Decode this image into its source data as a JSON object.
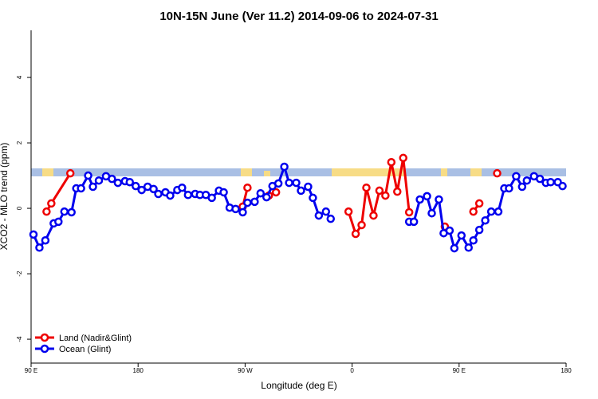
{
  "chart_data": {
    "type": "line",
    "title": "10N-15N June (Ver 11.2)   2014-09-06 to 2024-07-31",
    "x_label": "Longitude (deg E)",
    "y_label": "XCO2 - MLO trend (ppm)",
    "xlim": [
      90,
      540
    ],
    "xticks": [
      {
        "value": 90,
        "label": "90 E"
      },
      180,
      {
        "value": 270,
        "label": "90 W"
      },
      {
        "value": 360,
        "label": "0"
      },
      {
        "value": 450,
        "label": "90 E"
      },
      {
        "value": 540,
        "label": "180"
      }
    ],
    "ylim": [
      -4.73,
      5.44
    ],
    "yticks": [
      -4,
      -2,
      0,
      2,
      4
    ],
    "legend": "bottom-left",
    "series": [
      {
        "name": "Land (Nadir&Glint)",
        "color": "#ee0000",
        "x": [
          103,
          107,
          123,
          200,
          268,
          272,
          280,
          290,
          296,
          330,
          357,
          363,
          368,
          372,
          378,
          383,
          388,
          393,
          398,
          403,
          408,
          420,
          438,
          450,
          462,
          467,
          475,
          482
        ],
        "values": [
          -0.1,
          0.15,
          1.07,
          null,
          0.05,
          0.63,
          null,
          0.39,
          0.49,
          null,
          -0.1,
          -0.78,
          -0.51,
          0.63,
          -0.22,
          0.54,
          0.39,
          1.41,
          0.51,
          1.54,
          -0.12,
          null,
          -0.56,
          null,
          -0.1,
          0.15,
          null,
          1.07
        ]
      },
      {
        "name": "Ocean (Glint)",
        "color": "#0000ee",
        "x": [
          92,
          97,
          102,
          109,
          113,
          118,
          124,
          128,
          132,
          138,
          142,
          147,
          153,
          158,
          163,
          169,
          173,
          178,
          183,
          188,
          193,
          197,
          203,
          207,
          213,
          217,
          222,
          228,
          232,
          237,
          242,
          248,
          252,
          257,
          262,
          268,
          272,
          278,
          283,
          288,
          293,
          298,
          303,
          307,
          313,
          317,
          323,
          327,
          332,
          338,
          342,
          375,
          408,
          412,
          417,
          423,
          427,
          433,
          437,
          442,
          446,
          452,
          458,
          462,
          467,
          472,
          477,
          483,
          488,
          492,
          498,
          503,
          507,
          513,
          518,
          523,
          527,
          533,
          537
        ],
        "values": [
          -0.8,
          -1.2,
          -0.98,
          -0.46,
          -0.41,
          -0.1,
          -0.12,
          0.61,
          0.61,
          1.0,
          0.66,
          0.85,
          0.98,
          0.9,
          0.78,
          0.83,
          0.8,
          0.68,
          0.56,
          0.66,
          0.59,
          0.44,
          0.49,
          0.39,
          0.56,
          0.63,
          0.41,
          0.44,
          0.41,
          0.41,
          0.32,
          0.54,
          0.49,
          0.02,
          -0.02,
          -0.12,
          0.17,
          0.2,
          0.46,
          0.34,
          0.68,
          0.76,
          1.27,
          0.78,
          0.78,
          0.54,
          0.66,
          0.32,
          -0.22,
          -0.1,
          -0.32,
          null,
          -0.41,
          -0.41,
          0.27,
          0.37,
          -0.15,
          0.27,
          -0.76,
          -0.68,
          -1.22,
          -0.83,
          -1.2,
          -0.98,
          -0.66,
          -0.37,
          -0.1,
          -0.1,
          0.61,
          0.61,
          0.98,
          0.66,
          0.85,
          0.98,
          0.9,
          0.78,
          0.8,
          0.8,
          0.68
        ]
      }
    ]
  }
}
